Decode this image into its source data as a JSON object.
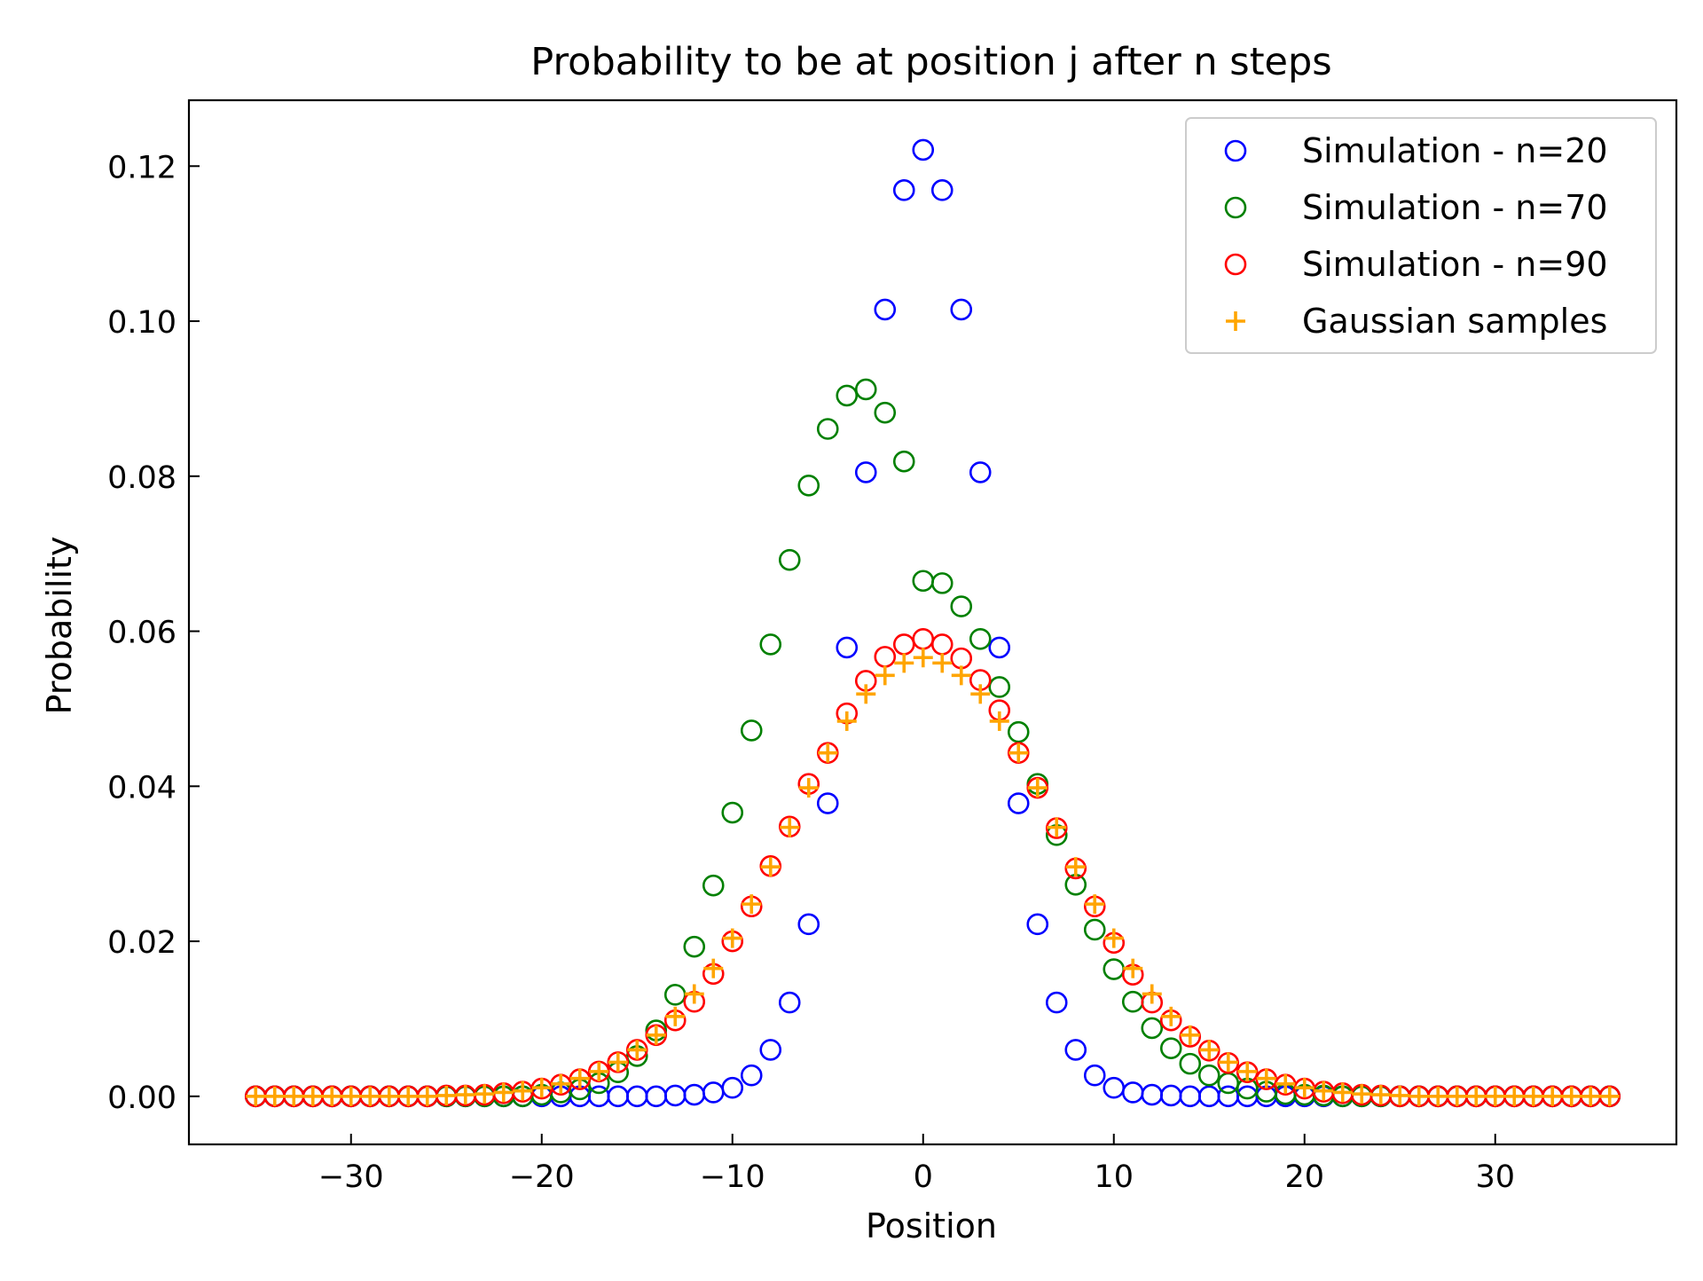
{
  "chart_data": {
    "type": "scatter",
    "title": "Probability to be at position j after n steps",
    "xlabel": "Position",
    "ylabel": "Probability",
    "xlim": [
      -38.5,
      39.5
    ],
    "ylim": [
      -0.0062,
      0.1285
    ],
    "xticks": [
      -30,
      -20,
      -10,
      0,
      10,
      20,
      30
    ],
    "xtick_labels": [
      "−30",
      "−20",
      "−10",
      "0",
      "10",
      "20",
      "30"
    ],
    "yticks": [
      0.0,
      0.02,
      0.04,
      0.06,
      0.08,
      0.1,
      0.12
    ],
    "ytick_labels": [
      "0.00",
      "0.02",
      "0.04",
      "0.06",
      "0.08",
      "0.10",
      "0.12"
    ],
    "grid": false,
    "legend_position": "top-right",
    "x": [
      -35,
      -34,
      -33,
      -32,
      -31,
      -30,
      -29,
      -28,
      -27,
      -26,
      -25,
      -24,
      -23,
      -22,
      -21,
      -20,
      -19,
      -18,
      -17,
      -16,
      -15,
      -14,
      -13,
      -12,
      -11,
      -10,
      -9,
      -8,
      -7,
      -6,
      -5,
      -4,
      -3,
      -2,
      -1,
      0,
      1,
      2,
      3,
      4,
      5,
      6,
      7,
      8,
      9,
      10,
      11,
      12,
      13,
      14,
      15,
      16,
      17,
      18,
      19,
      20,
      21,
      22,
      23,
      24,
      25,
      26,
      27,
      28,
      29,
      30,
      31,
      32,
      33,
      34,
      35,
      36
    ],
    "series": [
      {
        "name": "Simulation - n=20",
        "marker": "circle",
        "color": "#0000ff",
        "values": [
          0,
          0,
          0,
          0,
          0,
          0,
          0,
          0,
          0,
          0,
          0,
          0,
          0,
          0,
          0,
          0,
          0,
          0,
          0,
          0,
          0,
          0,
          0.0001,
          0.0002,
          0.0005,
          0.0011,
          0.0027,
          0.006,
          0.0121,
          0.0222,
          0.0378,
          0.0579,
          0.0805,
          0.1015,
          0.1169,
          0.1221,
          0.1169,
          0.1015,
          0.0805,
          0.0579,
          0.0378,
          0.0222,
          0.0121,
          0.006,
          0.0027,
          0.0011,
          0.0005,
          0.0002,
          0.0001,
          0,
          0,
          0,
          0,
          0,
          0,
          0,
          0,
          0,
          0,
          0,
          0,
          0,
          0,
          0,
          0,
          0,
          0,
          0,
          0,
          0,
          0,
          0
        ]
      },
      {
        "name": "Simulation - n=70",
        "marker": "circle",
        "color": "#008000",
        "values": [
          0,
          0,
          0,
          0,
          0,
          0,
          0,
          0,
          0,
          0,
          0,
          0,
          0,
          0,
          0,
          0.0002,
          0.0005,
          0.0009,
          0.0017,
          0.0031,
          0.0052,
          0.0085,
          0.0131,
          0.0193,
          0.0272,
          0.0366,
          0.0472,
          0.0583,
          0.0692,
          0.0788,
          0.0861,
          0.0904,
          0.0912,
          0.0882,
          0.0819,
          0.0665,
          0.0662,
          0.0632,
          0.059,
          0.0528,
          0.047,
          0.0403,
          0.0337,
          0.0273,
          0.0215,
          0.0164,
          0.0122,
          0.0088,
          0.0062,
          0.0042,
          0.0027,
          0.0017,
          0.001,
          0.0006,
          0.0003,
          0.0002,
          0.0001,
          0,
          0,
          0,
          0,
          0,
          0,
          0,
          0,
          0,
          0,
          0,
          0,
          0,
          0,
          0
        ]
      },
      {
        "name": "Simulation - n=90",
        "marker": "circle",
        "color": "#ff0000",
        "values": [
          0,
          0,
          0,
          0,
          0,
          0,
          0,
          0,
          0,
          0,
          0.0001,
          0.0001,
          0.0002,
          0.0004,
          0.0006,
          0.001,
          0.0015,
          0.0022,
          0.0032,
          0.0044,
          0.006,
          0.0079,
          0.0098,
          0.0122,
          0.0158,
          0.02,
          0.0245,
          0.0297,
          0.0348,
          0.0403,
          0.0443,
          0.0494,
          0.0536,
          0.0567,
          0.0583,
          0.059,
          0.0583,
          0.0565,
          0.0537,
          0.0498,
          0.0443,
          0.0398,
          0.0346,
          0.0294,
          0.0245,
          0.0198,
          0.0157,
          0.0121,
          0.0098,
          0.0077,
          0.0059,
          0.0043,
          0.0031,
          0.0022,
          0.0015,
          0.001,
          0.0006,
          0.0004,
          0.0002,
          0.0001,
          0,
          0,
          0,
          0,
          0,
          0,
          0,
          0,
          0,
          0,
          0,
          0
        ]
      },
      {
        "name": "Gaussian samples",
        "marker": "plus",
        "color": "#ffa500",
        "values": [
          0,
          0,
          0,
          0,
          0,
          0,
          0,
          0,
          0,
          0,
          0.0001,
          0.0002,
          0.0003,
          0.0005,
          0.0007,
          0.0011,
          0.0016,
          0.0023,
          0.0032,
          0.0044,
          0.006,
          0.0079,
          0.0103,
          0.0132,
          0.0165,
          0.0204,
          0.0248,
          0.0296,
          0.0347,
          0.0398,
          0.0443,
          0.0484,
          0.0519,
          0.0543,
          0.0559,
          0.0566,
          0.0559,
          0.0543,
          0.0519,
          0.0484,
          0.0443,
          0.0398,
          0.0347,
          0.0296,
          0.0248,
          0.0204,
          0.0165,
          0.0132,
          0.0103,
          0.0079,
          0.006,
          0.0044,
          0.0032,
          0.0023,
          0.0016,
          0.0011,
          0.0007,
          0.0005,
          0.0003,
          0.0002,
          0.0001,
          0,
          0,
          0,
          0,
          0,
          0,
          0,
          0,
          0,
          0,
          0
        ]
      }
    ]
  }
}
